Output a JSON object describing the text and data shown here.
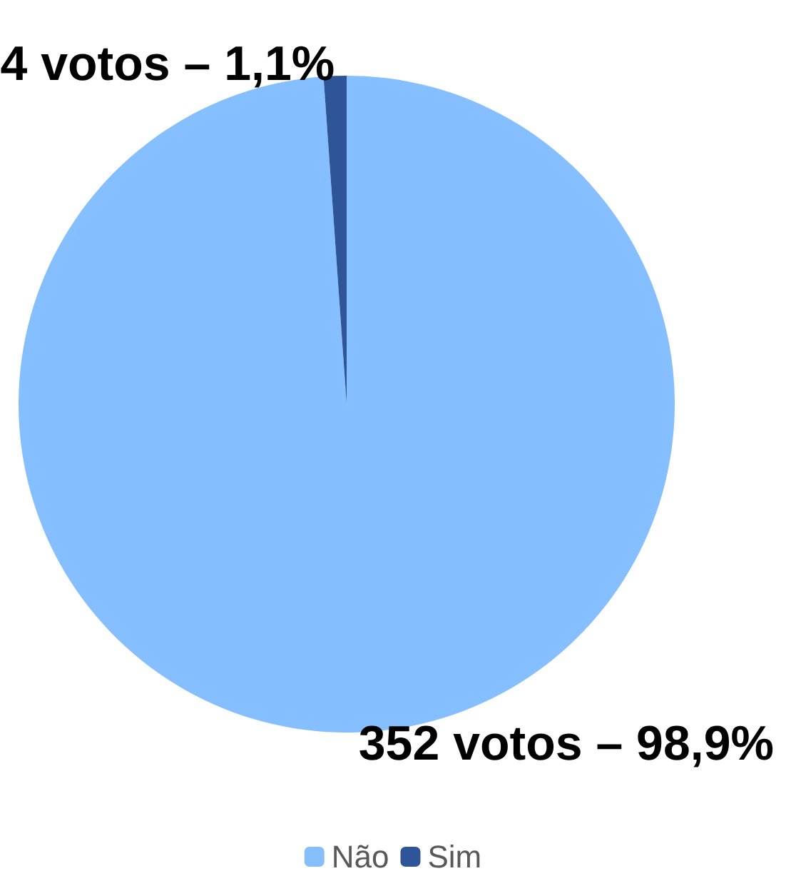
{
  "chart_data": {
    "type": "pie",
    "categories": [
      "Não",
      "Sim"
    ],
    "values": [
      352,
      4
    ],
    "colors": [
      "#85bfff",
      "#2e5597"
    ],
    "value_labels": [
      "352 votos – 98,9%",
      "4 votos – 1,1%"
    ],
    "legend": "bottom"
  }
}
